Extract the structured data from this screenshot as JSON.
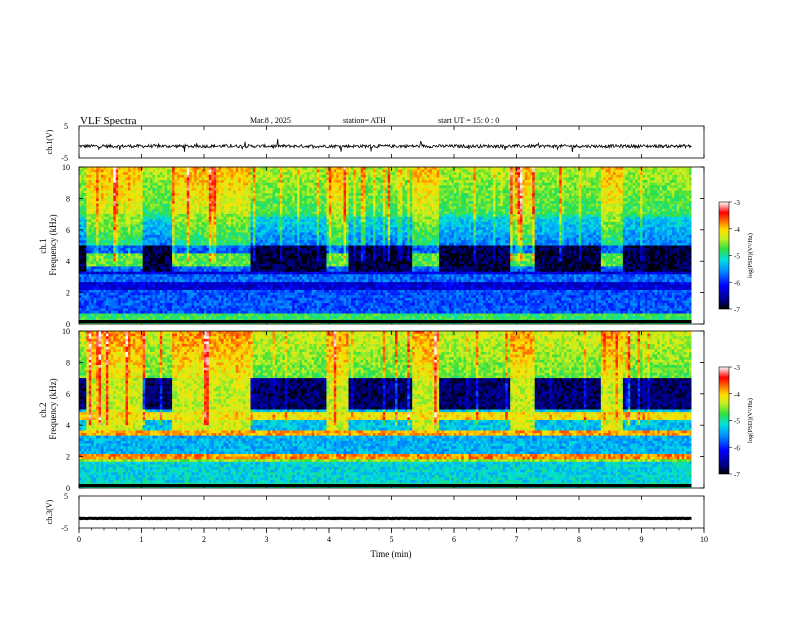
{
  "header": {
    "title": "VLF  Spectra",
    "date": "Mar.8  , 2025",
    "station": "station= ATH",
    "start": "start  UT  =    15: 0   : 0"
  },
  "chart_data": [
    {
      "type": "line",
      "ylabel": "ch.1(V)",
      "ylim": [
        -5,
        5
      ],
      "y_ticks": [
        "5",
        "-5"
      ],
      "approx_level": -1.3,
      "noise_amplitude": 1.0,
      "color": "#000000"
    },
    {
      "type": "heatmap",
      "ylabel": "ch.1\nFrequency (kHz)",
      "ylim": [
        0,
        10
      ],
      "y_ticks": [
        "0",
        "2",
        "4",
        "6",
        "8",
        "10"
      ],
      "colorbar": {
        "label": "log(PSD)(V²/Hz)",
        "range": [
          -7,
          -3
        ],
        "ticks": [
          "-3",
          "-4",
          "-5",
          "-6",
          "-7"
        ]
      },
      "description": "broadband noise, strong below 1 kHz, dark quiet blocks 4-6 kHz between transmitter bursts",
      "transmitter_band_khz": [
        3.6,
        4.6
      ],
      "bursts_min": [
        [
          0.1,
          1.0
        ],
        [
          1.5,
          2.75
        ],
        [
          3.95,
          4.3
        ],
        [
          5.35,
          5.75
        ],
        [
          6.9,
          7.3
        ],
        [
          8.35,
          8.7
        ]
      ]
    },
    {
      "type": "heatmap",
      "ylabel": "ch.2\nFrequency (kHz)",
      "ylim": [
        0,
        10
      ],
      "y_ticks": [
        "0",
        "2",
        "4",
        "6",
        "8",
        "10"
      ],
      "colorbar": {
        "label": "log(PSD)(V²/Hz)",
        "range": [
          -7,
          -3
        ],
        "ticks": [
          "-3",
          "-4",
          "-5",
          "-6",
          "-7"
        ]
      },
      "bursts_min": [
        [
          0.1,
          1.0
        ],
        [
          1.5,
          2.75
        ],
        [
          3.95,
          4.3
        ],
        [
          5.35,
          5.75
        ],
        [
          6.9,
          7.3
        ],
        [
          8.35,
          8.7
        ]
      ]
    },
    {
      "type": "line",
      "ylabel": "ch.3(V)",
      "ylim": [
        -5,
        5
      ],
      "y_ticks": [
        "5",
        "-5"
      ],
      "approx_level": -2.0,
      "noise_amplitude": 0.15,
      "color": "#000000"
    }
  ],
  "x_axis": {
    "label": "Time  (min)",
    "range": [
      0,
      10
    ],
    "data_end": 9.8,
    "ticks": [
      "0",
      "1",
      "2",
      "3",
      "4",
      "5",
      "6",
      "7",
      "8",
      "9",
      "10"
    ]
  }
}
